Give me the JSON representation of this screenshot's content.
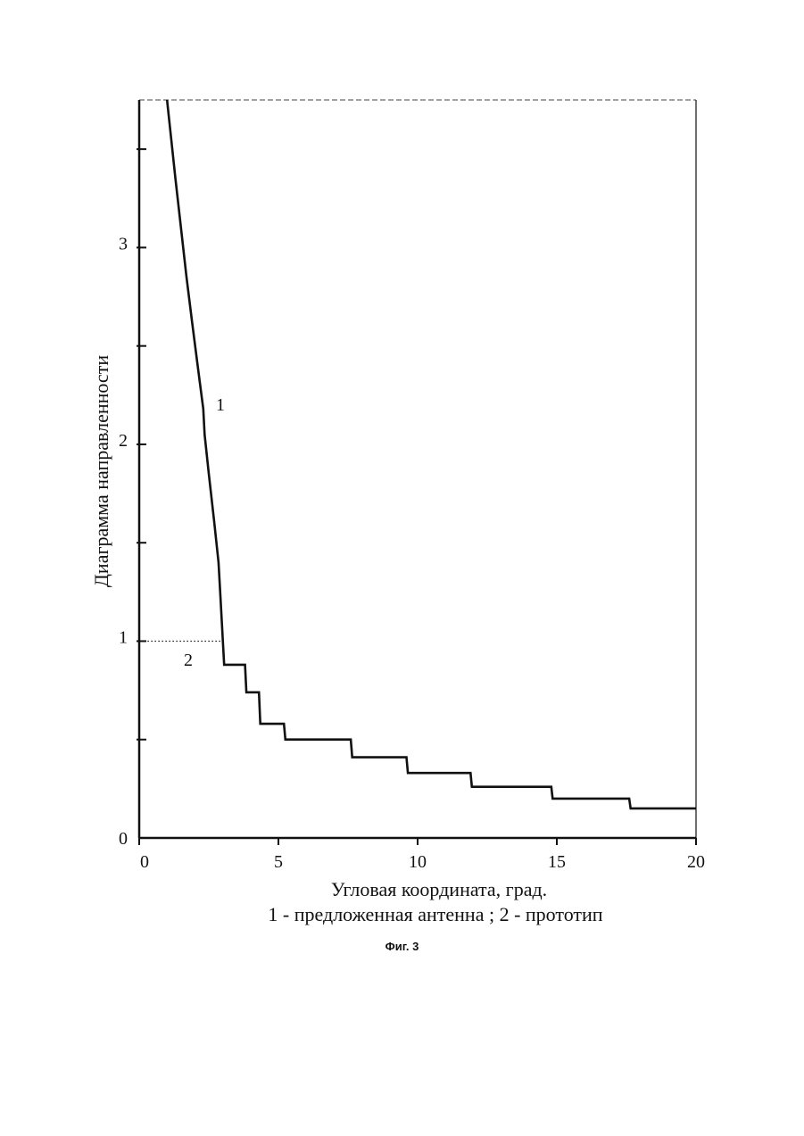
{
  "chart_data": {
    "type": "line",
    "title": "",
    "xlabel": "Угловая координата, град.",
    "ylabel": "Диаграмма направленности",
    "xlim": [
      0,
      20
    ],
    "ylim": [
      0,
      3.75
    ],
    "x_ticks": [
      "0",
      "5",
      "10",
      "15",
      "20"
    ],
    "y_ticks": [
      "0",
      "1",
      "2",
      "3"
    ],
    "legend_text": "1 - предложенная антенна ;    2 - прототип",
    "series": [
      {
        "name": "1",
        "style": "solid",
        "x": [
          1.0,
          1.15,
          1.3,
          1.5,
          1.7,
          1.9,
          2.1,
          2.3,
          2.35,
          2.5,
          2.7,
          2.85,
          2.9,
          3.05,
          3.1,
          3.15,
          3.8,
          3.85,
          4.3,
          4.35,
          5.2,
          5.25,
          7.6,
          7.65,
          9.6,
          9.65,
          11.9,
          11.95,
          14.8,
          14.85,
          17.6,
          17.65,
          20.0
        ],
        "y": [
          3.75,
          3.55,
          3.35,
          3.1,
          2.85,
          2.62,
          2.4,
          2.18,
          2.05,
          1.85,
          1.6,
          1.4,
          1.27,
          0.88,
          0.88,
          0.88,
          0.88,
          0.74,
          0.74,
          0.58,
          0.58,
          0.5,
          0.5,
          0.41,
          0.41,
          0.33,
          0.33,
          0.26,
          0.26,
          0.2,
          0.2,
          0.15,
          0.15
        ]
      },
      {
        "name": "2",
        "style": "dotted",
        "x": [
          0.3,
          3.1
        ],
        "y": [
          1.0,
          1.0
        ]
      }
    ],
    "reference_line": {
      "y": 3.75,
      "style": "dashed"
    },
    "curve_labels": {
      "c1": "1",
      "c2": "2"
    }
  },
  "figure_caption": "Фиг. 3",
  "colors": {
    "ink": "#111111",
    "background": "#ffffff"
  }
}
